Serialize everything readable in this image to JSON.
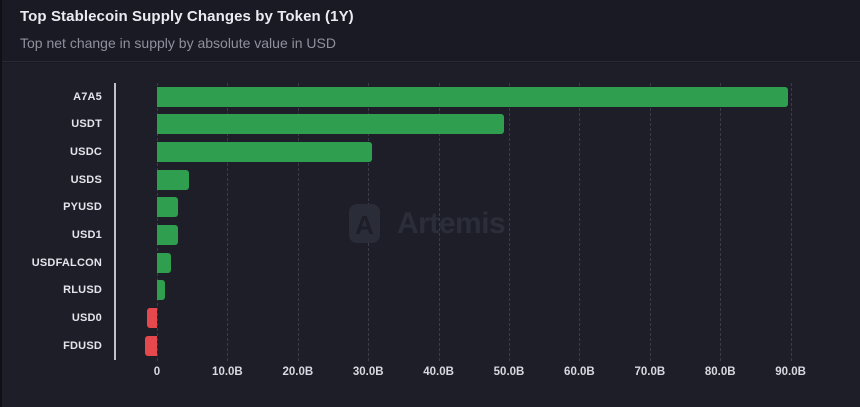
{
  "header": {
    "title": "Top Stablecoin Supply Changes by Token (1Y)",
    "subtitle": "Top net change in supply by absolute value in USD"
  },
  "watermark": {
    "logo_icon": "artemis-logo",
    "text": "Artemis"
  },
  "chart_data": {
    "type": "bar",
    "orientation": "horizontal",
    "title": "Top Stablecoin Supply Changes by Token (1Y)",
    "subtitle": "Top net change in supply by absolute value in USD",
    "unit": "USD billions",
    "categories": [
      "A7A5",
      "USDT",
      "USDC",
      "USDS",
      "PYUSD",
      "USD1",
      "USDFALCON",
      "RLUSD",
      "USD0",
      "FDUSD"
    ],
    "values": [
      89.6,
      49.3,
      30.5,
      4.6,
      3.0,
      3.0,
      2.0,
      1.2,
      -1.4,
      -1.7
    ],
    "x_tick_labels": [
      "0",
      "10.0B",
      "20.0B",
      "30.0B",
      "40.0B",
      "50.0B",
      "60.0B",
      "70.0B",
      "80.0B",
      "90.0B"
    ],
    "x_tick_values": [
      0,
      10,
      20,
      30,
      40,
      50,
      60,
      70,
      80,
      90
    ],
    "xlim": [
      -6,
      100
    ],
    "grid": "vertical-dashed",
    "legend": "none",
    "positive_color": "#2f9e4e",
    "negative_color": "#e5484d",
    "background_color": "#1d1e28"
  }
}
